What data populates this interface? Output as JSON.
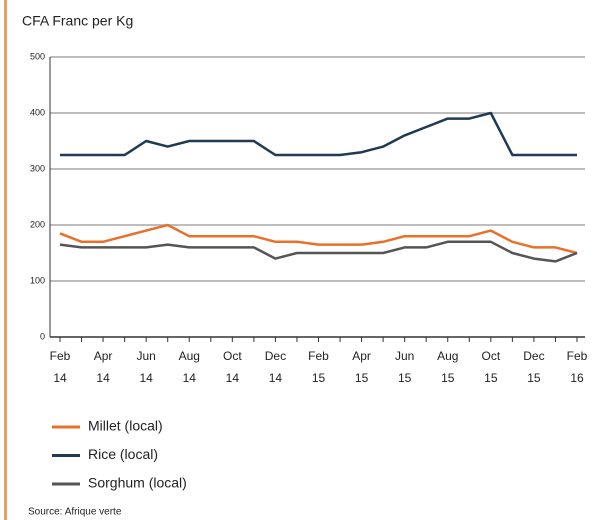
{
  "chart_data": {
    "type": "line",
    "title": "CFA Franc  per Kg",
    "source": "Source: Afrique verte",
    "categories": [
      "Feb 14",
      null,
      "Apr 14",
      null,
      "Jun 14",
      null,
      "Aug 14",
      null,
      "Oct 14",
      null,
      "Dec 14",
      null,
      "Feb 15",
      null,
      "Apr 15",
      null,
      "Jun 15",
      null,
      "Aug 15",
      null,
      "Oct 15",
      null,
      "Dec 15",
      null,
      "Feb 16"
    ],
    "series": [
      {
        "name": "Millet (local)",
        "color": "#e8702a",
        "values": [
          185,
          170,
          170,
          180,
          190,
          200,
          180,
          180,
          180,
          180,
          170,
          170,
          165,
          165,
          165,
          170,
          180,
          180,
          180,
          180,
          190,
          170,
          160,
          160,
          150
        ]
      },
      {
        "name": "Rice (local)",
        "color": "#1f3a52",
        "values": [
          325,
          325,
          325,
          325,
          350,
          340,
          350,
          350,
          350,
          350,
          325,
          325,
          325,
          325,
          330,
          340,
          360,
          375,
          390,
          390,
          400,
          325,
          325,
          325,
          325
        ]
      },
      {
        "name": "Sorghum (local)",
        "color": "#555555",
        "values": [
          165,
          160,
          160,
          160,
          160,
          165,
          160,
          160,
          160,
          160,
          140,
          150,
          150,
          150,
          150,
          150,
          160,
          160,
          170,
          170,
          170,
          150,
          140,
          135,
          150
        ]
      }
    ],
    "ylim": [
      0,
      500
    ],
    "yticks": [
      0,
      100,
      200,
      300,
      400,
      500
    ],
    "grid": true
  }
}
